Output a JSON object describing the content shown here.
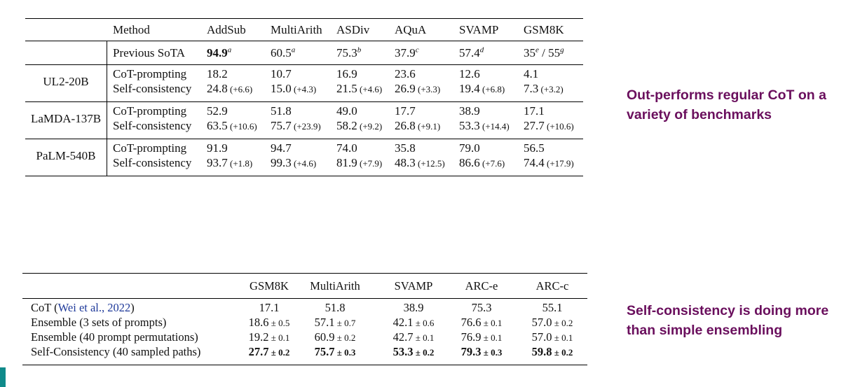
{
  "table1": {
    "headers": [
      "Method",
      "AddSub",
      "MultiArith",
      "ASDiv",
      "AQuA",
      "SVAMP",
      "GSM8K"
    ],
    "sota_label": "Previous SoTA",
    "sota": [
      {
        "value": "94.9",
        "sup": "a",
        "bold": true
      },
      {
        "value": "60.5",
        "sup": "a"
      },
      {
        "value": "75.3",
        "sup": "b"
      },
      {
        "value": "37.9",
        "sup": "c"
      },
      {
        "value": "57.4",
        "sup": "d"
      },
      {
        "value": "35",
        "sup": "e",
        "suffix": " / 55",
        "sup2": "g"
      }
    ],
    "models": [
      {
        "name": "UL2-20B",
        "rows": [
          {
            "method": "CoT-prompting",
            "values": [
              [
                "18.2",
                ""
              ],
              [
                "10.7",
                ""
              ],
              [
                "16.9",
                ""
              ],
              [
                "23.6",
                ""
              ],
              [
                "12.6",
                ""
              ],
              [
                "4.1",
                ""
              ]
            ]
          },
          {
            "method": "Self-consistency",
            "values": [
              [
                "24.8",
                "(+6.6)"
              ],
              [
                "15.0",
                "(+4.3)"
              ],
              [
                "21.5",
                "(+4.6)"
              ],
              [
                "26.9",
                "(+3.3)"
              ],
              [
                "19.4",
                "(+6.8)"
              ],
              [
                "7.3",
                "(+3.2)"
              ]
            ]
          }
        ]
      },
      {
        "name": "LaMDA-137B",
        "rows": [
          {
            "method": "CoT-prompting",
            "values": [
              [
                "52.9",
                ""
              ],
              [
                "51.8",
                ""
              ],
              [
                "49.0",
                ""
              ],
              [
                "17.7",
                ""
              ],
              [
                "38.9",
                ""
              ],
              [
                "17.1",
                ""
              ]
            ]
          },
          {
            "method": "Self-consistency",
            "values": [
              [
                "63.5",
                "(+10.6)"
              ],
              [
                "75.7",
                "(+23.9)"
              ],
              [
                "58.2",
                "(+9.2)"
              ],
              [
                "26.8",
                "(+9.1)"
              ],
              [
                "53.3",
                "(+14.4)"
              ],
              [
                "27.7",
                "(+10.6)"
              ]
            ]
          }
        ]
      },
      {
        "name": "PaLM-540B",
        "rows": [
          {
            "method": "CoT-prompting",
            "values": [
              [
                "91.9",
                ""
              ],
              [
                "94.7",
                ""
              ],
              [
                "74.0",
                ""
              ],
              [
                "35.8",
                ""
              ],
              [
                "79.0",
                ""
              ],
              [
                "56.5",
                ""
              ]
            ]
          },
          {
            "method": "Self-consistency",
            "values": [
              [
                "93.7",
                "(+1.8)"
              ],
              [
                "99.3",
                "(+4.6)"
              ],
              [
                "81.9",
                "(+7.9)"
              ],
              [
                "48.3",
                "(+12.5)"
              ],
              [
                "86.6",
                "(+7.6)"
              ],
              [
                "74.4",
                "(+17.9)"
              ]
            ]
          }
        ]
      }
    ]
  },
  "table2": {
    "headers": [
      "GSM8K",
      "MultiArith",
      "SVAMP",
      "ARC-e",
      "ARC-c"
    ],
    "rows": [
      {
        "label": "CoT (",
        "cite": "Wei et al., 2022",
        "label_end": ")",
        "values": [
          [
            "17.1",
            ""
          ],
          [
            "51.8",
            ""
          ],
          [
            "38.9",
            ""
          ],
          [
            "75.3",
            ""
          ],
          [
            "55.1",
            ""
          ]
        ]
      },
      {
        "label": "Ensemble (3 sets of prompts)",
        "values": [
          [
            "18.6",
            "± 0.5"
          ],
          [
            "57.1",
            "± 0.7"
          ],
          [
            "42.1",
            "± 0.6"
          ],
          [
            "76.6",
            "± 0.1"
          ],
          [
            "57.0",
            "± 0.2"
          ]
        ]
      },
      {
        "label": "Ensemble (40 prompt permutations)",
        "values": [
          [
            "19.2",
            "± 0.1"
          ],
          [
            "60.9",
            "± 0.2"
          ],
          [
            "42.7",
            "± 0.1"
          ],
          [
            "76.9",
            "± 0.1"
          ],
          [
            "57.0",
            "± 0.1"
          ]
        ]
      },
      {
        "label": "Self-Consistency (40 sampled paths)",
        "bold": true,
        "values": [
          [
            "27.7",
            "± 0.2"
          ],
          [
            "75.7",
            "± 0.3"
          ],
          [
            "53.3",
            "± 0.2"
          ],
          [
            "79.3",
            "± 0.3"
          ],
          [
            "59.8",
            "± 0.2"
          ]
        ]
      }
    ]
  },
  "notes": {
    "note1": "Out-performs regular CoT on a variety of benchmarks",
    "note2": "Self-consistency is doing more than simple ensembling"
  },
  "colors": {
    "note": "#6a0f5d",
    "cite": "#1f3a9a",
    "accent": "#0f8a8a"
  }
}
